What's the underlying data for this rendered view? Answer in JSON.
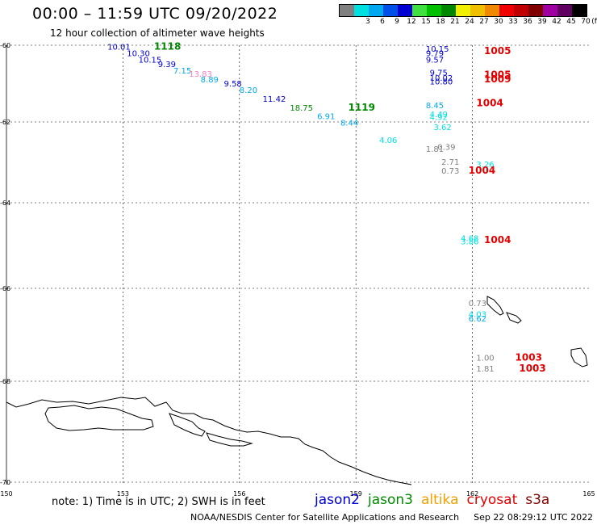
{
  "header": {
    "title": "00:00 – 11:59 UTC 09/20/2022",
    "subtitle": "12 hour collection of altimeter wave heights"
  },
  "scale": {
    "unit": "(ft)",
    "bins": [
      {
        "label": "",
        "color": "#808080"
      },
      {
        "label": "3",
        "color": "#00e0e0"
      },
      {
        "label": "6",
        "color": "#00a8f0"
      },
      {
        "label": "9",
        "color": "#0050e8"
      },
      {
        "label": "12",
        "color": "#0000d0"
      },
      {
        "label": "15",
        "color": "#40e040"
      },
      {
        "label": "18",
        "color": "#00c000"
      },
      {
        "label": "21",
        "color": "#008800"
      },
      {
        "label": "24",
        "color": "#f0f000"
      },
      {
        "label": "27",
        "color": "#f0c000"
      },
      {
        "label": "30",
        "color": "#f08800"
      },
      {
        "label": "33",
        "color": "#f00000"
      },
      {
        "label": "36",
        "color": "#c00000"
      },
      {
        "label": "39",
        "color": "#800000"
      },
      {
        "label": "42",
        "color": "#a000a0"
      },
      {
        "label": "45",
        "color": "#600060"
      },
      {
        "label": "70",
        "color": "#000000"
      }
    ]
  },
  "map": {
    "lon_range": [
      150,
      165
    ],
    "lat_range": [
      -70,
      -59.9
    ],
    "lon_ticks": [
      "150",
      "153",
      "156",
      "159",
      "162",
      "165"
    ],
    "lat_ticks": [
      "-60",
      "-62",
      "-64",
      "-66",
      "-68",
      "-70"
    ],
    "gridlines": "dashed",
    "coastline": "Antarctica coast (lower left)"
  },
  "observations": [
    {
      "text": "10.01",
      "color": "#0000d0",
      "lon": 152.6,
      "lat": -60.0
    },
    {
      "text": "10.30",
      "color": "#0000d0",
      "lon": 153.1,
      "lat": -60.15
    },
    {
      "text": "10.15",
      "color": "#0000d0",
      "lon": 153.4,
      "lat": -60.3
    },
    {
      "text": "9.39",
      "color": "#0000d0",
      "lon": 153.9,
      "lat": -60.4
    },
    {
      "text": "7.15",
      "color": "#00a8f0",
      "lon": 154.3,
      "lat": -60.55
    },
    {
      "text": "13.83",
      "color": "#f080c0",
      "lon": 154.7,
      "lat": -60.62
    },
    {
      "text": "8.89",
      "color": "#00a8f0",
      "lon": 155.0,
      "lat": -60.75
    },
    {
      "text": "9.58",
      "color": "#0000d0",
      "lon": 155.6,
      "lat": -60.85
    },
    {
      "text": "8.20",
      "color": "#00a8f0",
      "lon": 156.0,
      "lat": -61.0
    },
    {
      "text": "11.42",
      "color": "#0000d0",
      "lon": 156.6,
      "lat": -61.2
    },
    {
      "text": "18.75",
      "color": "#008800",
      "lon": 157.3,
      "lat": -61.4
    },
    {
      "text": "6.91",
      "color": "#00a8f0",
      "lon": 158.0,
      "lat": -61.6
    },
    {
      "text": "8.44",
      "color": "#00a8f0",
      "lon": 158.6,
      "lat": -61.75
    },
    {
      "text": "4.06",
      "color": "#00e0e0",
      "lon": 159.6,
      "lat": -62.15
    },
    {
      "text": "10.15",
      "color": "#0000d0",
      "lon": 160.8,
      "lat": -60.05
    },
    {
      "text": "9.79",
      "color": "#0000d0",
      "lon": 160.8,
      "lat": -60.15
    },
    {
      "text": "9.57",
      "color": "#0000d0",
      "lon": 160.8,
      "lat": -60.3
    },
    {
      "text": "9.75",
      "color": "#0000d0",
      "lon": 160.9,
      "lat": -60.6
    },
    {
      "text": "10.02",
      "color": "#0000d0",
      "lon": 160.9,
      "lat": -60.72
    },
    {
      "text": "10.80",
      "color": "#0000d0",
      "lon": 160.9,
      "lat": -60.8
    },
    {
      "text": "8.45",
      "color": "#00a8f0",
      "lon": 160.8,
      "lat": -61.35
    },
    {
      "text": "4.49",
      "color": "#00e0e0",
      "lon": 160.9,
      "lat": -61.55
    },
    {
      "text": "4.92",
      "color": "#00e0e0",
      "lon": 160.9,
      "lat": -61.62
    },
    {
      "text": "3.62",
      "color": "#00e0e0",
      "lon": 161.0,
      "lat": -61.85
    },
    {
      "text": "0.39",
      "color": "#808080",
      "lon": 161.1,
      "lat": -62.3
    },
    {
      "text": "1.81",
      "color": "#808080",
      "lon": 160.8,
      "lat": -62.35
    },
    {
      "text": "2.71",
      "color": "#808080",
      "lon": 161.2,
      "lat": -62.65
    },
    {
      "text": "0.73",
      "color": "#808080",
      "lon": 161.2,
      "lat": -62.85
    },
    {
      "text": "3.26",
      "color": "#00e0e0",
      "lon": 162.1,
      "lat": -62.7
    },
    {
      "text": "4.68",
      "color": "#00e0e0",
      "lon": 161.7,
      "lat": -64.4
    },
    {
      "text": "3.86",
      "color": "#00e0e0",
      "lon": 161.7,
      "lat": -64.48
    },
    {
      "text": "0.73",
      "color": "#808080",
      "lon": 161.9,
      "lat": -65.9
    },
    {
      "text": "4.03",
      "color": "#00e0e0",
      "lon": 161.9,
      "lat": -66.15
    },
    {
      "text": "6.62",
      "color": "#00a8f0",
      "lon": 161.9,
      "lat": -66.25
    },
    {
      "text": "1.00",
      "color": "#808080",
      "lon": 162.1,
      "lat": -67.15
    },
    {
      "text": "1.81",
      "color": "#808080",
      "lon": 162.1,
      "lat": -67.4
    }
  ],
  "pass_labels": [
    {
      "text": "1118",
      "color": "#008800",
      "lon": 153.8,
      "lat": -60.0
    },
    {
      "text": "1119",
      "color": "#008800",
      "lon": 158.8,
      "lat": -61.4
    },
    {
      "text": "1005",
      "color": "#e00000",
      "lon": 162.3,
      "lat": -60.1
    },
    {
      "text": "1005",
      "color": "#e00000",
      "lon": 162.3,
      "lat": -60.65
    },
    {
      "text": "1009",
      "color": "#e00000",
      "lon": 162.3,
      "lat": -60.75
    },
    {
      "text": "1004",
      "color": "#e00000",
      "lon": 162.1,
      "lat": -61.3
    },
    {
      "text": "1004",
      "color": "#e00000",
      "lon": 161.9,
      "lat": -62.85
    },
    {
      "text": "1004",
      "color": "#e00000",
      "lon": 162.3,
      "lat": -64.45
    },
    {
      "text": "1003",
      "color": "#e00000",
      "lon": 163.1,
      "lat": -67.15
    },
    {
      "text": "1003",
      "color": "#e00000",
      "lon": 163.2,
      "lat": -67.4
    }
  ],
  "footer": {
    "note": "note: 1) Time is in UTC; 2) SWH is in feet",
    "satellites": [
      {
        "name": "jason2",
        "color": "#0000d0"
      },
      {
        "name": "jason3",
        "color": "#008800"
      },
      {
        "name": "altika",
        "color": "#f0a000"
      },
      {
        "name": "cryosat",
        "color": "#e00000"
      },
      {
        "name": "s3a",
        "color": "#800000"
      }
    ],
    "credit": "NOAA/NESDIS Center for Satellite Applications and Research",
    "timestamp": "Sep 22 08:29:12 UTC 2022"
  }
}
